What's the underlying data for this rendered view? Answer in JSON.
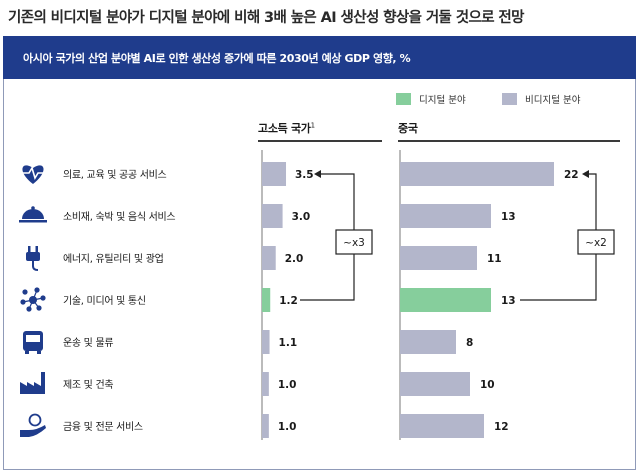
{
  "headline": "기존의 비디지털 분야가 디지털 분야에 비해 3배 높은 AI 생산성 향상을 거둘 것으로 전망",
  "chart_data": {
    "type": "bar",
    "title": "아시아 국가의 산업 분야별 AI로 인한 생산성 증가에 따른 2030년 예상 GDP 영향, %",
    "categories": [
      "의료, 교육 및 공공 서비스",
      "소비재, 숙박 및 음식 서비스",
      "에너지, 유틸리티 및 광업",
      "기술, 미디어 및 통신",
      "운송 및 물류",
      "제조 및 건축",
      "금융 및 전문 서비스"
    ],
    "category_icons": [
      "heart-pulse-icon",
      "food-service-cloche-icon",
      "plug-icon",
      "network-nodes-icon",
      "bus-icon",
      "factory-icon",
      "money-hand-icon"
    ],
    "legend": [
      {
        "name": "디지털 분야",
        "color": "#86ce9c"
      },
      {
        "name": "비디지털 분야",
        "color": "#b3b6cb"
      }
    ],
    "panels": [
      {
        "title": "고소득 국가",
        "footnote": "1",
        "values": [
          3.5,
          3.0,
          2.0,
          1.2,
          1.1,
          1.0,
          1.0
        ],
        "labels": [
          "3.5",
          "3.0",
          "2.0",
          "1.2",
          "1.1",
          "1.0",
          "1.0"
        ],
        "digital": [
          false,
          false,
          false,
          true,
          false,
          false,
          false
        ],
        "annotation": "~x3"
      },
      {
        "title": "중국",
        "footnote": "",
        "values": [
          22,
          13,
          11,
          13,
          8,
          10,
          12
        ],
        "labels": [
          "22",
          "13",
          "11",
          "13",
          "8",
          "10",
          "12"
        ],
        "digital": [
          false,
          false,
          false,
          true,
          false,
          false,
          false
        ],
        "annotation": "~x2"
      }
    ],
    "colors": {
      "digital": "#86ce9c",
      "non_digital": "#b3b6cb",
      "banner": "#1f3c8c",
      "icon": "#1f3c8c"
    }
  }
}
